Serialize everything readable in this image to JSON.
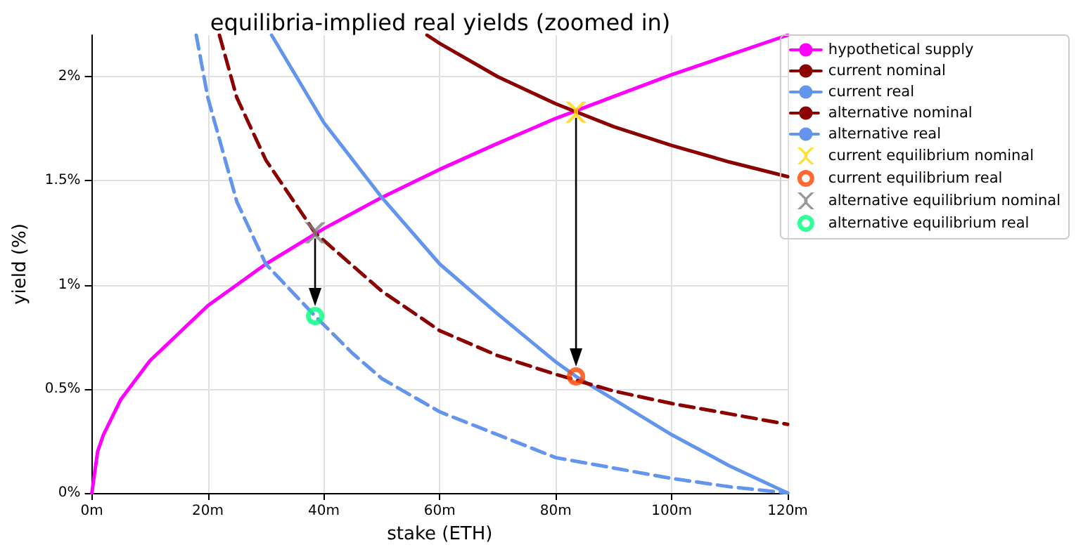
{
  "chart_data": {
    "type": "line",
    "title": "equilibria-implied real yields (zoomed in)",
    "xlabel": "stake (ETH)",
    "ylabel": "yield (%)",
    "xlim": [
      0,
      120
    ],
    "xticks": [
      {
        "value": 0,
        "label": "0m"
      },
      {
        "value": 20,
        "label": "20m"
      },
      {
        "value": 40,
        "label": "40m"
      },
      {
        "value": 60,
        "label": "60m"
      },
      {
        "value": 80,
        "label": "80m"
      },
      {
        "value": 100,
        "label": "100m"
      },
      {
        "value": 120,
        "label": "120m"
      }
    ],
    "ylim": [
      0,
      2.2
    ],
    "yticks": [
      {
        "value": 0,
        "label": "0%"
      },
      {
        "value": 0.5,
        "label": "0.5%"
      },
      {
        "value": 1,
        "label": "1%"
      },
      {
        "value": 1.5,
        "label": "1.5%"
      },
      {
        "value": 2,
        "label": "2%"
      }
    ],
    "grid": true,
    "legend": "right",
    "series": [
      {
        "name": "hypothetical supply",
        "type": "line",
        "color": "#ff00ff",
        "line_style": "solid",
        "marker": "none",
        "x": [
          0,
          1,
          2,
          5,
          10,
          20,
          30,
          40,
          50,
          60,
          70,
          80,
          90,
          100,
          110,
          120
        ],
        "values": [
          0,
          0.2,
          0.28,
          0.45,
          0.635,
          0.9,
          1.1,
          1.27,
          1.42,
          1.555,
          1.68,
          1.8,
          1.905,
          2.01,
          2.105,
          2.2
        ]
      },
      {
        "name": "current nominal",
        "type": "line",
        "color": "#8b0000",
        "line_style": "solid",
        "marker": "none",
        "x": [
          57.8,
          60,
          70,
          80,
          90,
          100,
          110,
          120
        ],
        "values": [
          2.2,
          2.16,
          2.0,
          1.87,
          1.76,
          1.67,
          1.59,
          1.52
        ]
      },
      {
        "name": "current real",
        "type": "line",
        "color": "#6495ed",
        "line_style": "solid",
        "marker": "none",
        "x": [
          31,
          40,
          50,
          60,
          70,
          80,
          83.5,
          90,
          100,
          110,
          120
        ],
        "values": [
          2.2,
          1.78,
          1.42,
          1.1,
          0.86,
          0.63,
          0.56,
          0.45,
          0.28,
          0.13,
          0
        ]
      },
      {
        "name": "alternative nominal",
        "type": "line",
        "color": "#8b0000",
        "line_style": "dashed",
        "marker": "none",
        "x": [
          22,
          25,
          30,
          38.5,
          50,
          60,
          70,
          80,
          90,
          100,
          110,
          120
        ],
        "values": [
          2.2,
          1.9,
          1.6,
          1.25,
          0.97,
          0.78,
          0.66,
          0.57,
          0.49,
          0.43,
          0.38,
          0.33
        ]
      },
      {
        "name": "alternative real",
        "type": "line",
        "color": "#6495ed",
        "line_style": "dashed",
        "marker": "none",
        "x": [
          18,
          20,
          25,
          30,
          38.5,
          45,
          50,
          60,
          70,
          80,
          90,
          100,
          110,
          120
        ],
        "values": [
          2.2,
          1.9,
          1.4,
          1.1,
          0.85,
          0.67,
          0.55,
          0.39,
          0.28,
          0.17,
          0.12,
          0.07,
          0.03,
          0
        ]
      },
      {
        "name": "current equilibrium nominal",
        "type": "scatter",
        "color": "#ffd700",
        "marker": "cross",
        "x": [
          83.5
        ],
        "values": [
          1.83
        ]
      },
      {
        "name": "current equilibrium real",
        "type": "scatter",
        "color": "#ff4500",
        "marker": "circle",
        "x": [
          83.5
        ],
        "values": [
          0.56
        ]
      },
      {
        "name": "alternative equilibrium nominal",
        "type": "scatter",
        "color": "#808080",
        "marker": "cross",
        "x": [
          38.5
        ],
        "values": [
          1.25
        ]
      },
      {
        "name": "alternative equilibrium real",
        "type": "scatter",
        "color": "#00ff7f",
        "marker": "circle",
        "x": [
          38.5
        ],
        "values": [
          0.85
        ]
      }
    ]
  }
}
